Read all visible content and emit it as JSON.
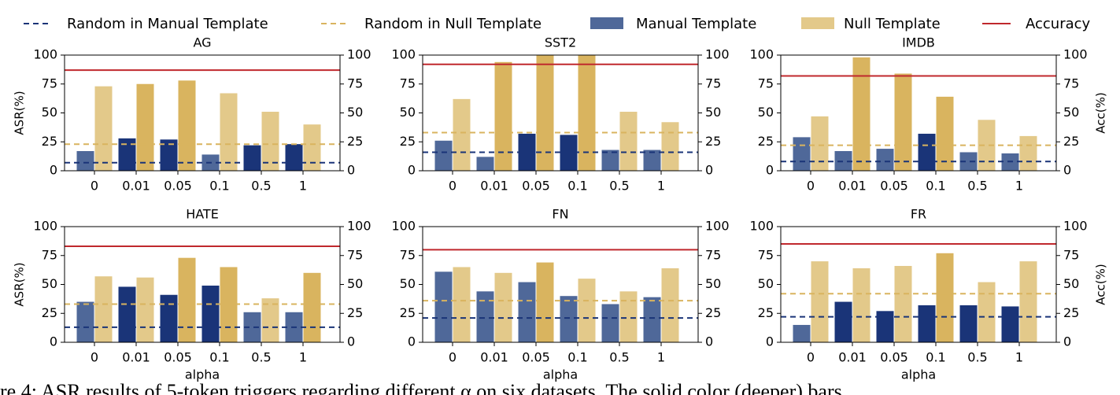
{
  "chart_data": [
    {
      "type": "bar",
      "title": "AG",
      "ylabel": "ASR(%)",
      "categories": [
        "0",
        "0.01",
        "0.05",
        "0.1",
        "0.5",
        "1"
      ],
      "ylim": [
        0,
        100
      ],
      "yticks": [
        0,
        25,
        50,
        75,
        100
      ],
      "y2lim": [
        0,
        100
      ],
      "y2ticks": [
        0,
        25,
        50,
        75,
        100
      ],
      "series": [
        {
          "name": "Manual Template",
          "color": "#4f6899",
          "colors": [
            "#4f6899",
            "#1a3478",
            "#1a3478",
            "#4f6899",
            "#1a3478",
            "#1a3478"
          ],
          "values": [
            17,
            28,
            27,
            14,
            22,
            23
          ]
        },
        {
          "name": "Null Template",
          "color": "#e3c98a",
          "colors": [
            "#e3c98a",
            "#d9b45f",
            "#d9b45f",
            "#e3c98a",
            "#e3c98a",
            "#e3c98a"
          ],
          "values": [
            73,
            75,
            78,
            67,
            51,
            40
          ]
        }
      ],
      "hlines": [
        {
          "name": "Random in Manual Template",
          "color": "#1a3478",
          "dashed": true,
          "value": 7
        },
        {
          "name": "Random in Null Template",
          "color": "#d9b45f",
          "dashed": true,
          "value": 23
        },
        {
          "name": "Accuracy",
          "color": "#c0282d",
          "dashed": false,
          "axis": "y2",
          "value": 87
        }
      ]
    },
    {
      "type": "bar",
      "title": "SST2",
      "categories": [
        "0",
        "0.01",
        "0.05",
        "0.1",
        "0.5",
        "1"
      ],
      "ylim": [
        0,
        100
      ],
      "yticks": [
        0,
        25,
        50,
        75,
        100
      ],
      "y2lim": [
        0,
        100
      ],
      "y2ticks": [
        0,
        25,
        50,
        75,
        100
      ],
      "series": [
        {
          "name": "Manual Template",
          "color": "#4f6899",
          "colors": [
            "#4f6899",
            "#4f6899",
            "#1a3478",
            "#1a3478",
            "#4f6899",
            "#4f6899"
          ],
          "values": [
            26,
            12,
            32,
            31,
            18,
            18
          ]
        },
        {
          "name": "Null Template",
          "color": "#e3c98a",
          "colors": [
            "#e3c98a",
            "#d9b45f",
            "#d9b45f",
            "#d9b45f",
            "#e3c98a",
            "#e3c98a"
          ],
          "values": [
            62,
            94,
            100,
            100,
            51,
            42
          ]
        }
      ],
      "hlines": [
        {
          "name": "Random in Manual Template",
          "color": "#1a3478",
          "dashed": true,
          "value": 16
        },
        {
          "name": "Random in Null Template",
          "color": "#d9b45f",
          "dashed": true,
          "value": 33
        },
        {
          "name": "Accuracy",
          "color": "#c0282d",
          "dashed": false,
          "axis": "y2",
          "value": 92
        }
      ]
    },
    {
      "type": "bar",
      "title": "IMDB",
      "y2label": "Acc(%)",
      "categories": [
        "0",
        "0.01",
        "0.05",
        "0.1",
        "0.5",
        "1"
      ],
      "ylim": [
        0,
        100
      ],
      "yticks": [
        0,
        25,
        50,
        75,
        100
      ],
      "y2lim": [
        0,
        100
      ],
      "y2ticks": [
        0,
        25,
        50,
        75,
        100
      ],
      "series": [
        {
          "name": "Manual Template",
          "color": "#4f6899",
          "colors": [
            "#4f6899",
            "#4f6899",
            "#4f6899",
            "#1a3478",
            "#4f6899",
            "#4f6899"
          ],
          "values": [
            29,
            17,
            19,
            32,
            16,
            15
          ]
        },
        {
          "name": "Null Template",
          "color": "#e3c98a",
          "colors": [
            "#e3c98a",
            "#d9b45f",
            "#d9b45f",
            "#d9b45f",
            "#e3c98a",
            "#e3c98a"
          ],
          "values": [
            47,
            98,
            84,
            64,
            44,
            30
          ]
        }
      ],
      "hlines": [
        {
          "name": "Random in Manual Template",
          "color": "#1a3478",
          "dashed": true,
          "value": 8
        },
        {
          "name": "Random in Null Template",
          "color": "#d9b45f",
          "dashed": true,
          "value": 22
        },
        {
          "name": "Accuracy",
          "color": "#c0282d",
          "dashed": false,
          "axis": "y2",
          "value": 82
        }
      ]
    },
    {
      "type": "bar",
      "title": "HATE",
      "ylabel": "ASR(%)",
      "xlabel": "alpha",
      "categories": [
        "0",
        "0.01",
        "0.05",
        "0.1",
        "0.5",
        "1"
      ],
      "ylim": [
        0,
        100
      ],
      "yticks": [
        0,
        25,
        50,
        75,
        100
      ],
      "y2lim": [
        0,
        100
      ],
      "y2ticks": [
        0,
        25,
        50,
        75,
        100
      ],
      "series": [
        {
          "name": "Manual Template",
          "color": "#4f6899",
          "colors": [
            "#4f6899",
            "#1a3478",
            "#1a3478",
            "#1a3478",
            "#4f6899",
            "#4f6899"
          ],
          "values": [
            35,
            48,
            41,
            49,
            26,
            26
          ]
        },
        {
          "name": "Null Template",
          "color": "#e3c98a",
          "colors": [
            "#e3c98a",
            "#e3c98a",
            "#d9b45f",
            "#d9b45f",
            "#e3c98a",
            "#d9b45f"
          ],
          "values": [
            57,
            56,
            73,
            65,
            38,
            60
          ]
        }
      ],
      "hlines": [
        {
          "name": "Random in Manual Template",
          "color": "#1a3478",
          "dashed": true,
          "value": 13
        },
        {
          "name": "Random in Null Template",
          "color": "#d9b45f",
          "dashed": true,
          "value": 33
        },
        {
          "name": "Accuracy",
          "color": "#c0282d",
          "dashed": false,
          "axis": "y2",
          "value": 83
        }
      ]
    },
    {
      "type": "bar",
      "title": "FN",
      "xlabel": "alpha",
      "categories": [
        "0",
        "0.01",
        "0.05",
        "0.1",
        "0.5",
        "1"
      ],
      "ylim": [
        0,
        100
      ],
      "yticks": [
        0,
        25,
        50,
        75,
        100
      ],
      "y2lim": [
        0,
        100
      ],
      "y2ticks": [
        0,
        25,
        50,
        75,
        100
      ],
      "series": [
        {
          "name": "Manual Template",
          "color": "#4f6899",
          "colors": [
            "#4f6899",
            "#4f6899",
            "#4f6899",
            "#4f6899",
            "#4f6899",
            "#4f6899"
          ],
          "values": [
            61,
            44,
            52,
            40,
            33,
            39
          ]
        },
        {
          "name": "Null Template",
          "color": "#e3c98a",
          "colors": [
            "#e3c98a",
            "#e3c98a",
            "#d9b45f",
            "#e3c98a",
            "#e3c98a",
            "#e3c98a"
          ],
          "values": [
            65,
            60,
            69,
            55,
            44,
            64
          ]
        }
      ],
      "hlines": [
        {
          "name": "Random in Manual Template",
          "color": "#1a3478",
          "dashed": true,
          "value": 21
        },
        {
          "name": "Random in Null Template",
          "color": "#d9b45f",
          "dashed": true,
          "value": 36
        },
        {
          "name": "Accuracy",
          "color": "#c0282d",
          "dashed": false,
          "axis": "y2",
          "value": 80
        }
      ]
    },
    {
      "type": "bar",
      "title": "FR",
      "y2label": "Acc(%)",
      "xlabel": "alpha",
      "categories": [
        "0",
        "0.01",
        "0.05",
        "0.1",
        "0.5",
        "1"
      ],
      "ylim": [
        0,
        100
      ],
      "yticks": [
        0,
        25,
        50,
        75,
        100
      ],
      "y2lim": [
        0,
        100
      ],
      "y2ticks": [
        0,
        25,
        50,
        75,
        100
      ],
      "series": [
        {
          "name": "Manual Template",
          "color": "#4f6899",
          "colors": [
            "#4f6899",
            "#1a3478",
            "#1a3478",
            "#1a3478",
            "#1a3478",
            "#1a3478"
          ],
          "values": [
            15,
            35,
            27,
            32,
            32,
            31
          ]
        },
        {
          "name": "Null Template",
          "color": "#e3c98a",
          "colors": [
            "#e3c98a",
            "#e3c98a",
            "#e3c98a",
            "#d9b45f",
            "#e3c98a",
            "#e3c98a"
          ],
          "values": [
            70,
            64,
            66,
            77,
            52,
            70
          ]
        }
      ],
      "hlines": [
        {
          "name": "Random in Manual Template",
          "color": "#1a3478",
          "dashed": true,
          "value": 22
        },
        {
          "name": "Random in Null Template",
          "color": "#d9b45f",
          "dashed": true,
          "value": 42
        },
        {
          "name": "Accuracy",
          "color": "#c0282d",
          "dashed": false,
          "axis": "y2",
          "value": 85
        }
      ]
    }
  ],
  "caption": "re 4: ASR results of 5-token triggers regarding different α on six datasets. The solid color (deeper) bars"
}
